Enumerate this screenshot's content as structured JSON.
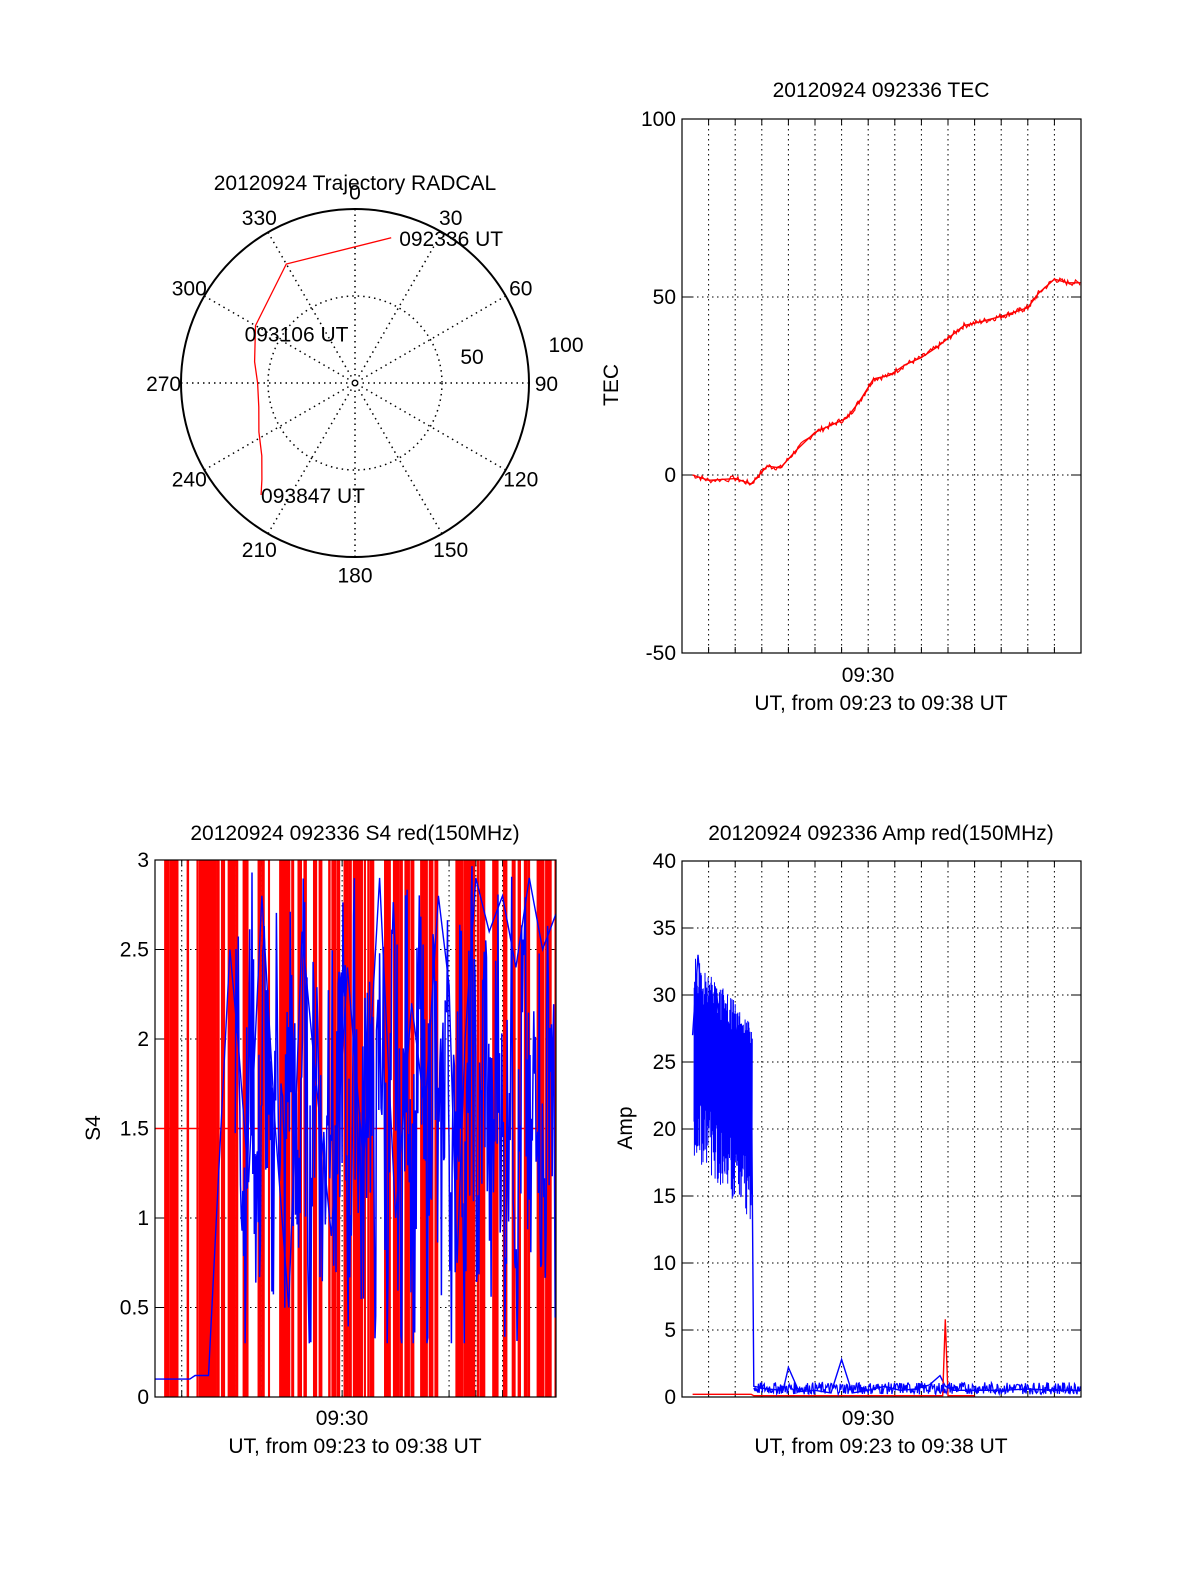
{
  "colors": {
    "red": "#ff0000",
    "blue": "#0000ff",
    "axis": "#000000",
    "grid": "#000000"
  },
  "chart_data": [
    {
      "id": "trajectory",
      "type": "polar",
      "title": "20120924 Trajectory RADCAL",
      "azimuth_labels": [
        "0",
        "30",
        "60",
        "90",
        "120",
        "150",
        "180",
        "210",
        "240",
        "270",
        "300",
        "330"
      ],
      "radial_labels": [
        "50",
        "100"
      ],
      "radial_max": 100,
      "series": [
        {
          "color": "red",
          "points": [
            [
              14,
              86
            ],
            [
              330,
              79
            ],
            [
              300,
              66
            ],
            [
              282,
              59
            ],
            [
              270,
              56
            ],
            [
              256,
              57
            ],
            [
              243,
              62
            ],
            [
              232,
              68
            ],
            [
              224,
              77
            ],
            [
              220,
              84
            ]
          ]
        }
      ],
      "annotations": [
        {
          "text": "092336 UT",
          "az": 14,
          "r": 86
        },
        {
          "text": "093106 UT",
          "az": 282,
          "r": 59
        },
        {
          "text": "093847 UT",
          "az": 220,
          "r": 84
        }
      ]
    },
    {
      "id": "tec",
      "type": "line",
      "title": "20120924 092336 TEC",
      "ylabel": "TEC",
      "xlabel": "UT, from 09:23 to 09:38 UT",
      "xtick_label": "09:30",
      "ylim": [
        -50,
        100
      ],
      "yticks": [
        -50,
        0,
        50,
        100
      ],
      "series": [
        {
          "color": "red",
          "x": [
            23.4,
            24.0,
            25.0,
            25.6,
            26.2,
            26.7,
            27.3,
            28.0,
            28.6,
            29.2,
            29.7,
            30.2,
            30.8,
            31.4,
            32.0,
            32.6,
            33.1,
            33.6,
            34.2,
            34.7,
            35.2,
            35.6,
            36.0,
            36.4,
            37.0,
            37.5,
            38.0
          ],
          "y": [
            0,
            -1.5,
            -1,
            -2.5,
            2.5,
            2,
            7,
            12,
            14,
            16,
            21,
            27,
            28,
            31,
            33,
            36,
            39,
            42,
            43,
            44,
            45,
            46,
            47,
            51,
            55,
            54,
            54
          ]
        }
      ]
    },
    {
      "id": "s4",
      "type": "line",
      "title": "20120924 092336 S4 red(150MHz)",
      "ylabel": "S4",
      "xlabel": "UT, from 09:23 to 09:38 UT",
      "xtick_label": "09:30",
      "ylim": [
        0,
        3
      ],
      "yticks": [
        "0",
        "0.5",
        "1",
        "1.5",
        "2",
        "2.5",
        "3"
      ],
      "series": [
        {
          "color": "red",
          "x": [
            23.0,
            38.0
          ],
          "y": [
            1.5,
            1.5
          ]
        },
        {
          "color": "blue",
          "x": [
            23.0,
            24.3,
            24.5,
            25.0,
            25.5,
            25.8,
            26.1,
            26.5,
            27.0,
            27.5,
            28.0,
            28.5,
            29.0,
            29.6,
            30.2,
            30.8,
            31.4,
            32.0,
            32.6,
            33.1,
            33.6,
            34.0,
            34.3,
            34.6,
            35.0,
            35.5,
            36.0,
            36.5,
            37.0,
            37.5,
            38.0
          ],
          "y": [
            0.1,
            0.1,
            0.12,
            0.12,
            1.6,
            2.5,
            2.0,
            1.2,
            2.8,
            1.5,
            0.5,
            2.6,
            1.8,
            0.9,
            2.4,
            1.3,
            2.9,
            1.0,
            2.2,
            1.6,
            2.8,
            2.3,
            0.75,
            2.0,
            2.9,
            2.6,
            2.8,
            2.4,
            2.9,
            2.5,
            2.7
          ]
        }
      ]
    },
    {
      "id": "amp",
      "type": "line",
      "title": "20120924 092336 Amp red(150MHz)",
      "ylabel": "Amp",
      "xlabel": "UT, from 09:23 to 09:38 UT",
      "xtick_label": "09:30",
      "ylim": [
        0,
        40
      ],
      "yticks": [
        0,
        5,
        10,
        15,
        20,
        25,
        30,
        35,
        40
      ],
      "series": [
        {
          "color": "blue",
          "x": [
            23.4,
            23.6,
            23.9,
            24.3,
            24.7,
            25.0,
            25.4,
            25.6,
            25.7,
            26.2,
            26.8,
            27.0,
            27.4,
            28.0,
            28.6,
            29.0,
            29.4,
            30.0,
            30.6,
            31.2,
            31.8,
            32.3,
            32.7,
            32.9,
            33.2,
            34.0,
            35.0,
            36.0,
            37.0,
            38.0
          ],
          "y": [
            27,
            33,
            26,
            30,
            24,
            28,
            22,
            26,
            0.8,
            0.6,
            0.5,
            2.2,
            0.4,
            0.5,
            0.3,
            2.8,
            0.3,
            0.5,
            0.8,
            0.5,
            0.6,
            0.9,
            1.6,
            0.8,
            0.5,
            0.5,
            0.5,
            0.6,
            0.5,
            0.5
          ]
        },
        {
          "color": "red",
          "x": [
            23.4,
            25.6,
            25.7,
            32.8,
            32.9,
            33.0,
            34.0
          ],
          "y": [
            0.2,
            0.2,
            0.1,
            0.1,
            5.8,
            0.1,
            0.1
          ]
        }
      ]
    }
  ]
}
